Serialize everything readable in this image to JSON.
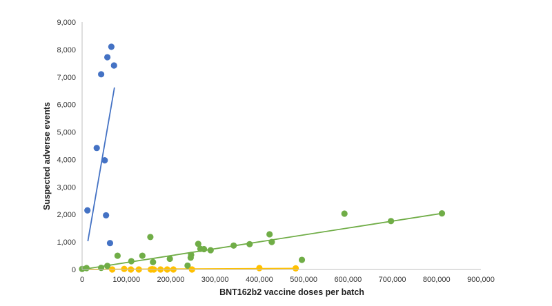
{
  "chart_data": {
    "type": "scatter",
    "title": "",
    "xlabel": "BNT162b2 vaccine doses per batch",
    "ylabel": "Suspected adverse events",
    "xlim": [
      0,
      900000
    ],
    "ylim": [
      0,
      9000
    ],
    "x_ticks": [
      0,
      100000,
      200000,
      300000,
      400000,
      500000,
      600000,
      700000,
      800000,
      900000
    ],
    "x_tick_labels": [
      "0",
      "100,000",
      "200,000",
      "300,000",
      "400,000",
      "500,000",
      "600,000",
      "700,000",
      "800,000",
      "900,000"
    ],
    "y_ticks": [
      0,
      1000,
      2000,
      3000,
      4000,
      5000,
      6000,
      7000,
      8000,
      9000
    ],
    "y_tick_labels": [
      "0",
      "1,000",
      "2,000",
      "3,000",
      "4,000",
      "5,000",
      "6,000",
      "7,000",
      "8,000",
      "9,000"
    ],
    "grid": false,
    "legend": "none",
    "series": [
      {
        "color": "#4472c4",
        "points": [
          [
            12000,
            2150
          ],
          [
            33000,
            4420
          ],
          [
            43000,
            7100
          ],
          [
            51000,
            3970
          ],
          [
            54000,
            1970
          ],
          [
            57000,
            7720
          ],
          [
            63000,
            960
          ],
          [
            66000,
            8100
          ],
          [
            72000,
            7420
          ]
        ],
        "trendline": [
          [
            13000,
            1030
          ],
          [
            73000,
            6620
          ]
        ]
      },
      {
        "color": "#70ad47",
        "points": [
          [
            0,
            20
          ],
          [
            10000,
            50
          ],
          [
            43000,
            60
          ],
          [
            57000,
            130
          ],
          [
            80000,
            500
          ],
          [
            111000,
            300
          ],
          [
            136000,
            500
          ],
          [
            154000,
            1180
          ],
          [
            160000,
            270
          ],
          [
            198000,
            390
          ],
          [
            238000,
            140
          ],
          [
            245000,
            430
          ],
          [
            246000,
            530
          ],
          [
            262000,
            930
          ],
          [
            267000,
            750
          ],
          [
            275000,
            740
          ],
          [
            290000,
            700
          ],
          [
            342000,
            870
          ],
          [
            378000,
            920
          ],
          [
            423000,
            1280
          ],
          [
            428000,
            1000
          ],
          [
            496000,
            350
          ],
          [
            592000,
            2030
          ],
          [
            697000,
            1760
          ],
          [
            812000,
            2040
          ]
        ],
        "trendline": [
          [
            0,
            0
          ],
          [
            812000,
            2040
          ]
        ]
      },
      {
        "color": "#ffc000",
        "points": [
          [
            68000,
            0
          ],
          [
            95000,
            20
          ],
          [
            110000,
            0
          ],
          [
            128000,
            0
          ],
          [
            155000,
            0
          ],
          [
            158000,
            10
          ],
          [
            162000,
            0
          ],
          [
            177000,
            0
          ],
          [
            192000,
            0
          ],
          [
            206000,
            0
          ],
          [
            248000,
            0
          ],
          [
            400000,
            50
          ],
          [
            482000,
            40
          ]
        ],
        "trendline": [
          [
            0,
            0
          ],
          [
            482000,
            40
          ]
        ]
      }
    ]
  }
}
